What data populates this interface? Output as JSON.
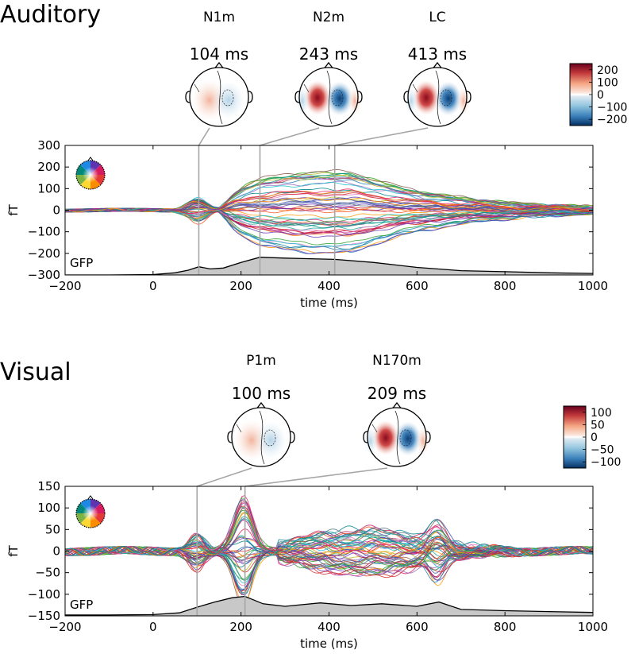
{
  "panels": [
    {
      "title": "Auditory",
      "components": [
        {
          "name": "N1m",
          "latency_label": "104 ms",
          "t": 104
        },
        {
          "name": "N2m",
          "latency_label": "243 ms",
          "t": 243
        },
        {
          "name": "LC",
          "latency_label": "413 ms",
          "t": 413
        }
      ],
      "colorbar": {
        "ticks": [
          "200",
          "100",
          "0",
          "−100",
          "−200"
        ],
        "range": [
          -250,
          250
        ]
      },
      "gfp_label": "GFP"
    },
    {
      "title": "Visual",
      "components": [
        {
          "name": "P1m",
          "latency_label": "100 ms",
          "t": 100
        },
        {
          "name": "N170m",
          "latency_label": "209 ms",
          "t": 209
        }
      ],
      "colorbar": {
        "ticks": [
          "100",
          "50",
          "0",
          "−50",
          "−100"
        ],
        "range": [
          -125,
          125
        ]
      },
      "gfp_label": "GFP"
    }
  ],
  "chart_data": [
    {
      "type": "line",
      "title": "Auditory",
      "xlabel": "time (ms)",
      "ylabel": "fT",
      "xlim": [
        -200,
        1000
      ],
      "ylim": [
        -300,
        300
      ],
      "xticks": [
        "−200",
        "0",
        "200",
        "400",
        "600",
        "800",
        "1000"
      ],
      "yticks": [
        "300",
        "200",
        "100",
        "0",
        "−100",
        "−200",
        "−300"
      ],
      "xtick_values": [
        -200,
        0,
        200,
        400,
        600,
        800,
        1000
      ],
      "ytick_values": [
        300,
        200,
        100,
        0,
        -100,
        -200,
        -300
      ],
      "gfp": {
        "x": [
          -200,
          -100,
          0,
          50,
          80,
          104,
          130,
          160,
          200,
          243,
          300,
          413,
          500,
          600,
          700,
          800,
          900,
          1000
        ],
        "y": [
          -300,
          -300,
          -298,
          -290,
          -278,
          -262,
          -272,
          -268,
          -242,
          -218,
          -222,
          -228,
          -242,
          -265,
          -280,
          -285,
          -290,
          -293
        ]
      }
    },
    {
      "type": "line",
      "title": "Visual",
      "xlabel": "time (ms)",
      "ylabel": "fT",
      "xlim": [
        -200,
        1000
      ],
      "ylim": [
        -150,
        150
      ],
      "xticks": [
        "−200",
        "0",
        "200",
        "400",
        "600",
        "800",
        "1000"
      ],
      "yticks": [
        "150",
        "100",
        "50",
        "0",
        "−50",
        "−100",
        "−150"
      ],
      "xtick_values": [
        -200,
        0,
        200,
        400,
        600,
        800,
        1000
      ],
      "ytick_values": [
        150,
        100,
        50,
        0,
        -50,
        -100,
        -150
      ],
      "gfp": {
        "x": [
          -200,
          -100,
          0,
          60,
          100,
          140,
          180,
          209,
          250,
          300,
          380,
          450,
          520,
          600,
          650,
          700,
          800,
          900,
          1000
        ],
        "y": [
          -148,
          -148,
          -147,
          -143,
          -130,
          -118,
          -108,
          -105,
          -122,
          -128,
          -120,
          -126,
          -122,
          -128,
          -118,
          -135,
          -138,
          -140,
          -142
        ]
      }
    }
  ]
}
